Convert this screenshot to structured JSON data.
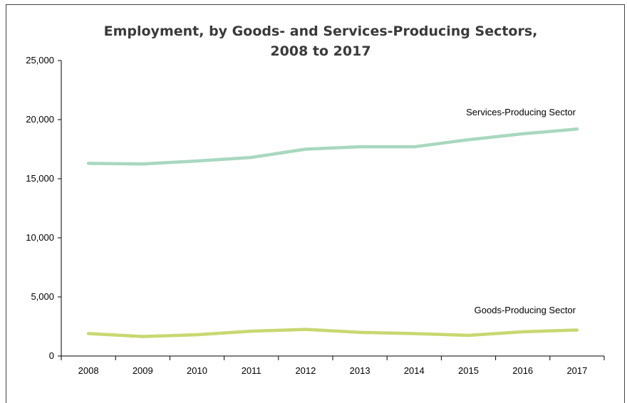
{
  "chart_data": {
    "type": "line",
    "title": "Employment, by Goods- and Services-Producing Sectors,",
    "subtitle": "2008 to 2017",
    "xlabel": "",
    "ylabel": "",
    "x": [
      "2008",
      "2009",
      "2010",
      "2011",
      "2012",
      "2013",
      "2014",
      "2015",
      "2016",
      "2017"
    ],
    "ylim": [
      0,
      25000
    ],
    "yticks": [
      0,
      5000,
      10000,
      15000,
      20000,
      25000
    ],
    "ytick_labels": [
      "0",
      "5,000",
      "10,000",
      "15,000",
      "20,000",
      "25,000"
    ],
    "grid": false,
    "series": [
      {
        "name": "Services-Producing Sector",
        "color": "#a8d8c0",
        "values": [
          16300,
          16250,
          16500,
          16800,
          17500,
          17700,
          17700,
          18300,
          18800,
          19200
        ]
      },
      {
        "name": "Goods-Producing Sector",
        "color": "#c8d870",
        "values": [
          1900,
          1650,
          1800,
          2100,
          2250,
          2000,
          1900,
          1750,
          2050,
          2200
        ]
      }
    ]
  }
}
